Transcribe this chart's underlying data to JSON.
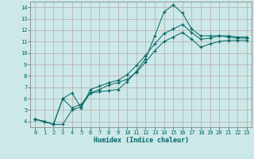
{
  "xlabel": "Humidex (Indice chaleur)",
  "background_color": "#cce8e8",
  "grid_color": "#b8a8a8",
  "line_color": "#006666",
  "spine_color": "#888888",
  "x_values": [
    0,
    1,
    2,
    3,
    4,
    5,
    6,
    7,
    8,
    9,
    10,
    11,
    12,
    13,
    14,
    15,
    16,
    17,
    18,
    19,
    20,
    21,
    22,
    23
  ],
  "line1": [
    4.2,
    4.0,
    3.75,
    3.75,
    5.0,
    5.3,
    6.5,
    6.6,
    6.7,
    6.8,
    7.5,
    8.4,
    9.5,
    11.5,
    13.6,
    14.2,
    13.5,
    12.1,
    11.5,
    11.5,
    11.5,
    11.5,
    11.4,
    11.4
  ],
  "line2": [
    4.2,
    4.0,
    3.75,
    6.0,
    6.5,
    5.2,
    6.8,
    7.1,
    7.4,
    7.6,
    8.1,
    8.9,
    9.8,
    10.8,
    11.7,
    12.1,
    12.5,
    11.8,
    11.2,
    11.3,
    11.5,
    11.4,
    11.3,
    11.3
  ],
  "line3": [
    4.2,
    4.0,
    3.75,
    6.0,
    5.2,
    5.5,
    6.5,
    6.8,
    7.2,
    7.4,
    7.7,
    8.3,
    9.2,
    10.2,
    11.0,
    11.4,
    11.8,
    11.2,
    10.5,
    10.8,
    11.0,
    11.1,
    11.1,
    11.1
  ],
  "ylim": [
    3.5,
    14.5
  ],
  "xlim": [
    -0.5,
    23.5
  ],
  "yticks": [
    4,
    5,
    6,
    7,
    8,
    9,
    10,
    11,
    12,
    13,
    14
  ],
  "xticks": [
    0,
    1,
    2,
    3,
    4,
    5,
    6,
    7,
    8,
    9,
    10,
    11,
    12,
    13,
    14,
    15,
    16,
    17,
    18,
    19,
    20,
    21,
    22,
    23
  ],
  "tick_fontsize": 5.0,
  "xlabel_fontsize": 6.0
}
